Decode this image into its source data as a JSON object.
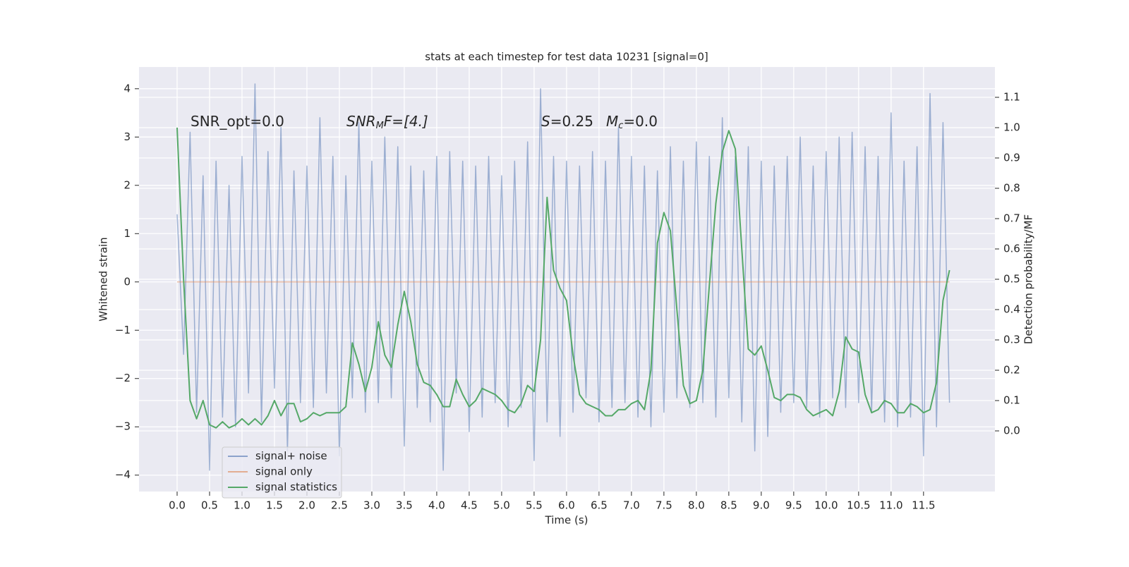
{
  "chart_data": {
    "type": "line",
    "title": "stats at each timestep for test data 10231 [signal=0]",
    "xlabel": "Time (s)",
    "ylabel": "Whitened strain",
    "y2label": "Detection probability/MF",
    "annotations": [
      [
        "SNR_opt=0.0"
      ],
      [
        "SNR",
        "M",
        "F=[4.]"
      ],
      [
        "S",
        "=0.25"
      ],
      [
        "M",
        "c",
        "=0.0"
      ]
    ],
    "x": [
      0,
      0.1,
      0.2,
      0.3,
      0.4,
      0.5,
      0.6,
      0.7,
      0.8,
      0.9,
      1,
      1.1,
      1.2,
      1.3,
      1.4,
      1.5,
      1.6,
      1.7,
      1.8,
      1.9,
      2,
      2.1,
      2.2,
      2.3,
      2.4,
      2.5,
      2.6,
      2.7,
      2.8,
      2.9,
      3,
      3.1,
      3.2,
      3.3,
      3.4,
      3.5,
      3.6,
      3.7,
      3.8,
      3.9,
      4,
      4.1,
      4.2,
      4.3,
      4.4,
      4.5,
      4.6,
      4.7,
      4.8,
      4.9,
      5,
      5.1,
      5.2,
      5.3,
      5.4,
      5.5,
      5.6,
      5.7,
      5.8,
      5.9,
      6,
      6.1,
      6.2,
      6.3,
      6.4,
      6.5,
      6.6,
      6.7,
      6.8,
      6.9,
      7,
      7.1,
      7.2,
      7.3,
      7.4,
      7.5,
      7.6,
      7.7,
      7.8,
      7.9,
      8,
      8.1,
      8.2,
      8.3,
      8.4,
      8.5,
      8.6,
      8.7,
      8.8,
      8.9,
      9,
      9.1,
      9.2,
      9.3,
      9.4,
      9.5,
      9.6,
      9.7,
      9.8,
      9.9,
      10,
      10.1,
      10.2,
      10.3,
      10.4,
      10.5,
      10.6,
      10.7,
      10.8,
      10.9,
      11,
      11.1,
      11.2,
      11.3,
      11.4,
      11.5,
      11.6,
      11.7,
      11.8,
      11.9
    ],
    "series": [
      {
        "name": "signal+ noise",
        "color": "#4c72b0",
        "values": [
          1.4,
          -1.5,
          3.1,
          -2.7,
          2.2,
          -3.9,
          2.5,
          -2.8,
          2.0,
          -3.0,
          2.6,
          -2.3,
          4.1,
          -2.9,
          2.7,
          -2.2,
          3.2,
          -3.5,
          2.3,
          -2.5,
          2.4,
          -2.6,
          3.4,
          -2.3,
          2.6,
          -3.6,
          2.2,
          -2.4,
          3.3,
          -2.7,
          2.5,
          -2.5,
          3.0,
          -2.4,
          2.8,
          -3.4,
          2.4,
          -2.6,
          2.3,
          -2.9,
          2.6,
          -3.9,
          2.7,
          -2.3,
          2.5,
          -3.1,
          2.4,
          -2.8,
          2.6,
          -2.5,
          2.2,
          -3.0,
          2.5,
          -2.6,
          2.9,
          -3.7,
          4.0,
          -2.9,
          2.6,
          -3.2,
          2.5,
          -2.7,
          2.4,
          -2.4,
          2.7,
          -2.9,
          2.5,
          -2.6,
          3.2,
          -2.5,
          2.6,
          -2.8,
          2.4,
          -3.0,
          2.3,
          -2.7,
          2.8,
          -2.4,
          2.5,
          -2.6,
          2.9,
          -2.5,
          2.6,
          -2.8,
          3.4,
          -2.4,
          2.6,
          -2.9,
          2.8,
          -3.5,
          2.5,
          -3.2,
          2.4,
          -2.7,
          2.6,
          -2.5,
          3.0,
          -2.6,
          2.4,
          -2.8,
          2.7,
          -2.4,
          3.0,
          -2.6,
          3.1,
          -2.5,
          2.8,
          -2.7,
          2.6,
          -2.9,
          3.5,
          -3.0,
          2.5,
          -2.8,
          2.8,
          -3.6,
          3.9,
          -3.0,
          3.3,
          -2.5
        ]
      },
      {
        "name": "signal only",
        "color": "#dd8452",
        "values": [
          0,
          0,
          0,
          0,
          0,
          0,
          0,
          0,
          0,
          0,
          0,
          0,
          0,
          0,
          0,
          0,
          0,
          0,
          0,
          0,
          0,
          0,
          0,
          0,
          0,
          0,
          0,
          0,
          0,
          0,
          0,
          0,
          0,
          0,
          0,
          0,
          0,
          0,
          0,
          0,
          0,
          0,
          0,
          0,
          0,
          0,
          0,
          0,
          0,
          0,
          0,
          0,
          0,
          0,
          0,
          0,
          0,
          0,
          0,
          0,
          0,
          0,
          0,
          0,
          0,
          0,
          0,
          0,
          0,
          0,
          0,
          0,
          0,
          0,
          0,
          0,
          0,
          0,
          0,
          0,
          0,
          0,
          0,
          0,
          0,
          0,
          0,
          0,
          0,
          0,
          0,
          0,
          0,
          0,
          0,
          0,
          0,
          0,
          0,
          0,
          0,
          0,
          0,
          0,
          0,
          0,
          0,
          0,
          0,
          0,
          0,
          0,
          0,
          0,
          0,
          0,
          0,
          0,
          0,
          0
        ]
      },
      {
        "name": "signal statistics",
        "color": "#55a868",
        "axis": "y2",
        "values": [
          1.0,
          0.5,
          0.1,
          0.04,
          0.1,
          0.02,
          0.01,
          0.03,
          0.01,
          0.02,
          0.04,
          0.02,
          0.04,
          0.02,
          0.05,
          0.1,
          0.05,
          0.09,
          0.09,
          0.03,
          0.04,
          0.06,
          0.05,
          0.06,
          0.06,
          0.06,
          0.08,
          0.29,
          0.22,
          0.13,
          0.21,
          0.36,
          0.25,
          0.21,
          0.35,
          0.46,
          0.36,
          0.22,
          0.16,
          0.15,
          0.12,
          0.08,
          0.08,
          0.17,
          0.12,
          0.08,
          0.1,
          0.14,
          0.13,
          0.12,
          0.1,
          0.07,
          0.06,
          0.09,
          0.15,
          0.13,
          0.3,
          0.77,
          0.53,
          0.47,
          0.43,
          0.25,
          0.12,
          0.09,
          0.08,
          0.07,
          0.05,
          0.05,
          0.07,
          0.07,
          0.09,
          0.1,
          0.07,
          0.2,
          0.62,
          0.72,
          0.66,
          0.4,
          0.15,
          0.09,
          0.1,
          0.2,
          0.48,
          0.75,
          0.92,
          0.99,
          0.93,
          0.6,
          0.27,
          0.25,
          0.28,
          0.2,
          0.11,
          0.1,
          0.12,
          0.12,
          0.11,
          0.07,
          0.05,
          0.06,
          0.07,
          0.05,
          0.13,
          0.31,
          0.27,
          0.26,
          0.12,
          0.06,
          0.07,
          0.1,
          0.09,
          0.06,
          0.06,
          0.09,
          0.08,
          0.06,
          0.07,
          0.16,
          0.43,
          0.53
        ]
      }
    ],
    "xlim": [
      -0.587,
      12.6
    ],
    "xticks": [
      {
        "value": 0,
        "label": "0.0"
      },
      0.5,
      {
        "value": 1,
        "label": "1.0"
      },
      1.5,
      {
        "value": 2,
        "label": "2.0"
      },
      2.5,
      {
        "value": 3,
        "label": "3.0"
      },
      3.5,
      {
        "value": 4,
        "label": "4.0"
      },
      4.5,
      {
        "value": 5,
        "label": "5.0"
      },
      5.5,
      {
        "value": 6,
        "label": "6.0"
      },
      6.5,
      {
        "value": 7,
        "label": "7.0"
      },
      7.5,
      {
        "value": 8,
        "label": "8.0"
      },
      8.5,
      {
        "value": 9,
        "label": "9.0"
      },
      9.5,
      {
        "value": 10,
        "label": "10.0"
      },
      10.5,
      {
        "value": 11,
        "label": "11.0"
      },
      11.5
    ],
    "ylim": [
      -4.34,
      4.45
    ],
    "yticks": [
      {
        "value": -4,
        "label": "−4"
      },
      {
        "value": -3,
        "label": "−3"
      },
      {
        "value": -2,
        "label": "−2"
      },
      {
        "value": -1,
        "label": "−1"
      },
      0,
      1,
      2,
      3,
      4
    ],
    "y2lim": [
      -0.2,
      1.2
    ],
    "y2ticks": [
      {
        "value": 0,
        "label": "0.0"
      },
      0.1,
      0.2,
      0.3,
      0.4,
      0.5,
      0.6,
      0.7,
      0.8,
      0.9,
      {
        "value": 1,
        "label": "1.0"
      },
      1.1
    ],
    "grid": true,
    "legend": "lower left"
  }
}
